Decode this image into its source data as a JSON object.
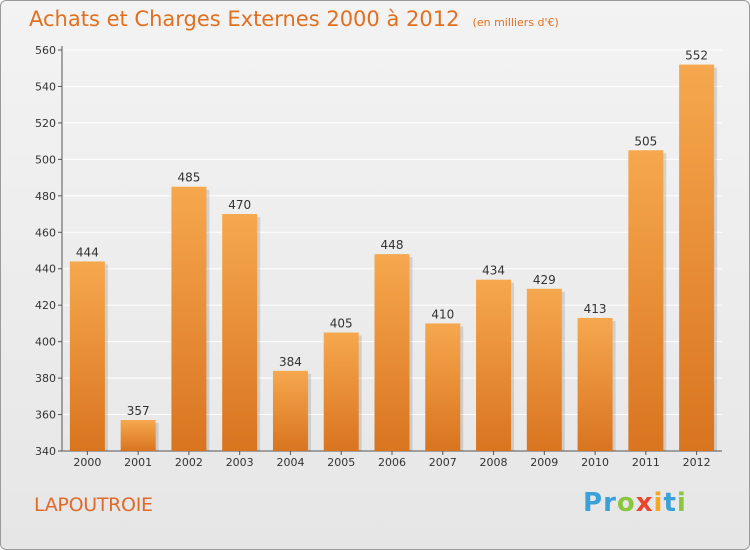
{
  "title": "Achats et Charges Externes 2000 à 2012",
  "unit": "(en milliers d'€)",
  "commune": "LAPOUTROIE",
  "logo": {
    "letters": [
      "P",
      "r",
      "o",
      "x",
      "i",
      "t",
      "i"
    ],
    "colors": [
      "#3aa0d8",
      "#3aa0d8",
      "#8cc63f",
      "#e8452c",
      "#f5a623",
      "#3aa0d8",
      "#8cc63f"
    ]
  },
  "colors": {
    "bar_light": "#f6a84e",
    "bar_dark": "#d9741f",
    "title": "#e07020",
    "grid": "#ffffff"
  },
  "chart_data": {
    "type": "bar",
    "categories": [
      "2000",
      "2001",
      "2002",
      "2003",
      "2004",
      "2005",
      "2006",
      "2007",
      "2008",
      "2009",
      "2010",
      "2011",
      "2012"
    ],
    "values": [
      444,
      357,
      485,
      470,
      384,
      405,
      448,
      410,
      434,
      429,
      413,
      505,
      552
    ],
    "ylim": [
      340,
      560
    ],
    "yticks": [
      340,
      360,
      380,
      400,
      420,
      440,
      460,
      480,
      500,
      520,
      540,
      560
    ],
    "grid": true
  }
}
